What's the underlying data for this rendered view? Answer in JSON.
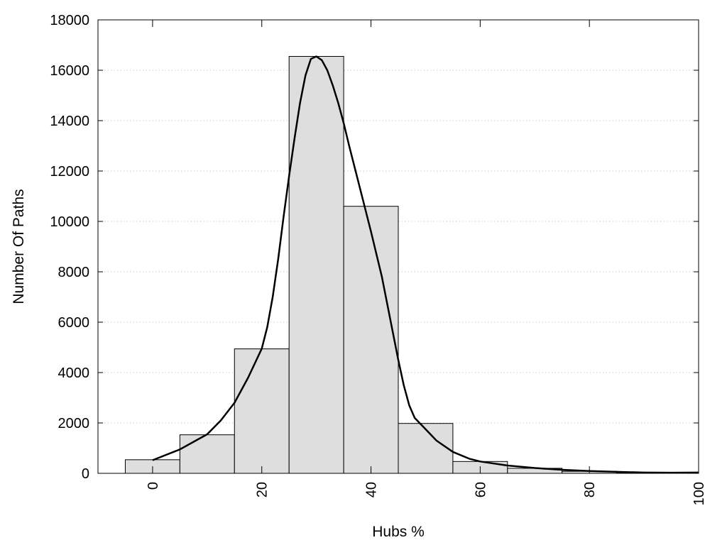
{
  "chart_data": {
    "type": "bar",
    "xlabel": "Hubs %",
    "ylabel": "Number Of Paths",
    "xlim": [
      -10,
      100
    ],
    "ylim": [
      0,
      18000
    ],
    "x_ticks": [
      "0",
      "20",
      "40",
      "60",
      "80",
      "100"
    ],
    "y_ticks": [
      "0",
      "2000",
      "4000",
      "6000",
      "8000",
      "10000",
      "12000",
      "14000",
      "16000",
      "18000"
    ],
    "grid": "horizontal",
    "bin_width": 10,
    "bins": [
      {
        "center": 0,
        "value": 540
      },
      {
        "center": 10,
        "value": 1530
      },
      {
        "center": 20,
        "value": 4940
      },
      {
        "center": 30,
        "value": 16550
      },
      {
        "center": 40,
        "value": 10600
      },
      {
        "center": 50,
        "value": 1980
      },
      {
        "center": 60,
        "value": 470
      },
      {
        "center": 70,
        "value": 200
      },
      {
        "center": 80,
        "value": 80
      },
      {
        "center": 90,
        "value": 30
      },
      {
        "center": 100,
        "value": 30
      }
    ],
    "curve": [
      [
        0,
        520
      ],
      [
        5,
        950
      ],
      [
        10,
        1550
      ],
      [
        12.5,
        2100
      ],
      [
        15,
        2800
      ],
      [
        17.5,
        3800
      ],
      [
        20,
        4950
      ],
      [
        21,
        5800
      ],
      [
        22,
        7000
      ],
      [
        23,
        8500
      ],
      [
        24,
        10200
      ],
      [
        25,
        11800
      ],
      [
        26,
        13300
      ],
      [
        27,
        14700
      ],
      [
        28,
        15800
      ],
      [
        29,
        16450
      ],
      [
        30,
        16550
      ],
      [
        31,
        16400
      ],
      [
        32,
        16000
      ],
      [
        33,
        15400
      ],
      [
        34,
        14700
      ],
      [
        35,
        13900
      ],
      [
        36,
        13000
      ],
      [
        38,
        11300
      ],
      [
        40,
        9600
      ],
      [
        42,
        7800
      ],
      [
        44,
        5600
      ],
      [
        45,
        4500
      ],
      [
        46,
        3500
      ],
      [
        47,
        2700
      ],
      [
        48,
        2200
      ],
      [
        50,
        1750
      ],
      [
        52,
        1300
      ],
      [
        55,
        850
      ],
      [
        58,
        580
      ],
      [
        60,
        470
      ],
      [
        65,
        310
      ],
      [
        70,
        210
      ],
      [
        75,
        140
      ],
      [
        80,
        90
      ],
      [
        85,
        60
      ],
      [
        90,
        30
      ],
      [
        95,
        25
      ],
      [
        100,
        30
      ]
    ]
  }
}
